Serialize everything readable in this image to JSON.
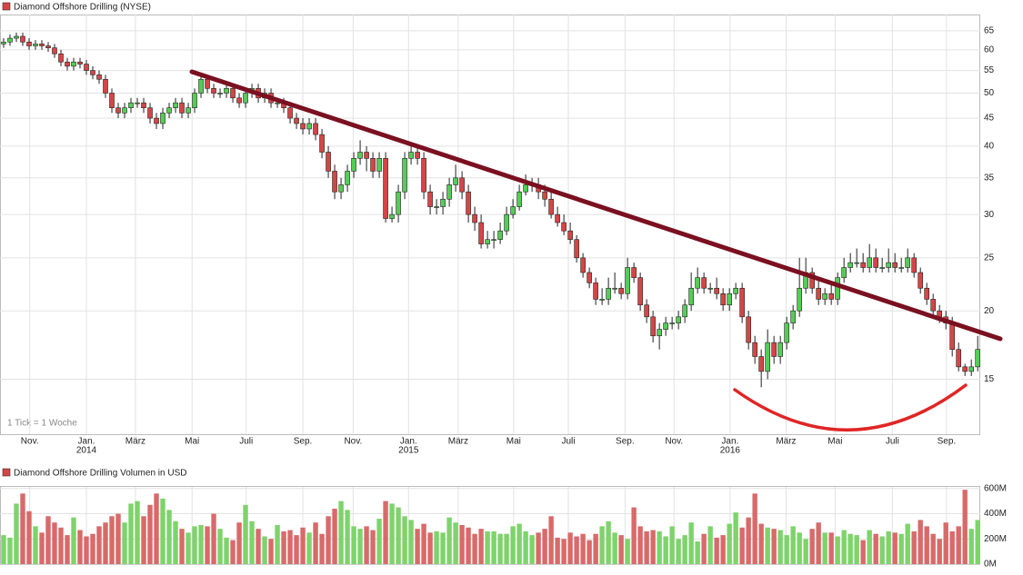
{
  "chart_data": [
    {
      "type": "candlestick",
      "title": "Diamond Offshore Drilling (NYSE)",
      "note": "1 Tick = 1 Woche",
      "log_scale": true,
      "grid": true,
      "up_color": "#55cc55",
      "down_color": "#d64545",
      "xlim": [
        -0.57,
        153.4
      ],
      "ylim": [
        11.9,
        69.6
      ],
      "yticks": [
        15,
        20,
        25,
        30,
        35,
        40,
        45,
        50,
        55,
        60,
        65
      ],
      "xticks": [
        {
          "value": 4.1,
          "label": "Nov."
        },
        {
          "value": 13,
          "label": "Jan."
        },
        {
          "value": 20.7,
          "label": "März"
        },
        {
          "value": 29.6,
          "label": "Mai"
        },
        {
          "value": 38.1,
          "label": "Juli"
        },
        {
          "value": 47,
          "label": "Sep."
        },
        {
          "value": 54.9,
          "label": "Nov."
        },
        {
          "value": 63.6,
          "label": "Jan."
        },
        {
          "value": 71.4,
          "label": "März"
        },
        {
          "value": 80.1,
          "label": "Mai"
        },
        {
          "value": 88.7,
          "label": "Juli"
        },
        {
          "value": 97.6,
          "label": "Sep."
        },
        {
          "value": 105.3,
          "label": "Nov."
        },
        {
          "value": 114.1,
          "label": "Jan."
        },
        {
          "value": 122.9,
          "label": "März"
        },
        {
          "value": 130.6,
          "label": "Mai"
        },
        {
          "value": 139.6,
          "label": "Juli"
        },
        {
          "value": 148.1,
          "label": "Sep."
        }
      ],
      "year_labels": [
        {
          "value": 13,
          "label": "2014"
        },
        {
          "value": 63.6,
          "label": "2015"
        },
        {
          "value": 114.1,
          "label": "2016"
        }
      ],
      "series": [
        {
          "name": "Diamond Offshore Drilling",
          "open": [
            61.5,
            62,
            63,
            63.5,
            62,
            61,
            61.5,
            61,
            60.5,
            59,
            57,
            56,
            57,
            56.5,
            55,
            54,
            53,
            50,
            47,
            46,
            47,
            48,
            48,
            47,
            45,
            44,
            46,
            47,
            48,
            46,
            47,
            50,
            53,
            51,
            50,
            50,
            51,
            49,
            48,
            50,
            51,
            49,
            50,
            48,
            48,
            47,
            45,
            44,
            43,
            44,
            42,
            39,
            36,
            33,
            34,
            36,
            38,
            39,
            38,
            36,
            38,
            29.5,
            30,
            33,
            38,
            39,
            38,
            33,
            31,
            31,
            32,
            34,
            35,
            33,
            30,
            29,
            26.5,
            27,
            27,
            28,
            30,
            31,
            33,
            34,
            34,
            33,
            32,
            30,
            29,
            28,
            27,
            25,
            23.5,
            22.5,
            21,
            21,
            22,
            22,
            21.5,
            24,
            23,
            20.5,
            19.5,
            18,
            18.5,
            19,
            19,
            19.5,
            20.5,
            22,
            23,
            22,
            22,
            21.5,
            20.5,
            21.5,
            22,
            19.5,
            17.5,
            16.5,
            15.5,
            17.5,
            16.5,
            17.5,
            19,
            20,
            22,
            23.5,
            22,
            21,
            21.5,
            21,
            23,
            24,
            24.5,
            24.5,
            24,
            25,
            24,
            24,
            24.5,
            24,
            24,
            25,
            23.5,
            22,
            21,
            20,
            19.5,
            19,
            17,
            15.8,
            15.5,
            15.8
          ],
          "high": [
            63,
            64,
            64.5,
            64.5,
            63,
            62.5,
            62.5,
            62,
            61.5,
            60,
            58,
            58,
            58,
            57.5,
            56,
            55,
            54,
            51,
            48,
            48,
            49,
            49,
            49,
            48,
            46,
            47,
            48,
            49,
            49,
            48,
            51,
            54,
            54,
            52,
            51,
            52,
            52,
            50,
            51,
            52,
            52,
            51,
            51,
            49,
            49,
            48,
            46,
            45,
            45,
            45,
            43,
            40,
            37,
            35,
            37,
            39,
            41,
            40,
            39,
            39,
            39,
            31,
            34,
            39,
            40,
            40,
            39,
            34,
            32,
            33,
            35,
            37,
            36,
            34,
            31,
            30,
            28,
            28,
            29,
            31,
            32,
            34,
            35.5,
            35,
            35,
            34,
            33,
            31,
            30,
            29,
            27.5,
            25.5,
            24,
            23,
            22,
            23,
            23.5,
            22.5,
            25,
            24.5,
            23.5,
            21,
            20,
            19,
            19.5,
            19.5,
            20,
            21,
            23.5,
            24,
            23.5,
            22.5,
            23,
            22,
            22,
            22.5,
            22.5,
            20,
            18,
            17,
            18.5,
            18,
            18,
            19.5,
            20.5,
            25,
            25,
            24,
            23,
            22,
            22.5,
            23.5,
            25,
            25.5,
            26,
            25.5,
            26.5,
            26,
            25,
            26,
            25.5,
            25,
            26,
            25.5,
            24,
            22.5,
            21.5,
            20.5,
            20,
            19.5,
            17.5,
            16,
            16.3,
            18
          ],
          "low": [
            60.5,
            61,
            62,
            61,
            60,
            60,
            60,
            59.5,
            58,
            56,
            55,
            55,
            55.5,
            54,
            53,
            52,
            49,
            46,
            45,
            45,
            46,
            47,
            46,
            44,
            43,
            43,
            45,
            46,
            45,
            45,
            46,
            49,
            50,
            49,
            49,
            49,
            48,
            47,
            47,
            49,
            48,
            48,
            47,
            47,
            46,
            44,
            43,
            42,
            42,
            41,
            38,
            35,
            32,
            32,
            33,
            35,
            37,
            36,
            35,
            35,
            29,
            29,
            29,
            32,
            37,
            37,
            32,
            30,
            30,
            30,
            31,
            33,
            32,
            29,
            28,
            26,
            26,
            26,
            26.5,
            27.5,
            29.5,
            30.5,
            32.5,
            33,
            32,
            31,
            29.5,
            28.5,
            27.5,
            26.5,
            24.5,
            23,
            22,
            20.5,
            20.5,
            20.5,
            21.5,
            21,
            21,
            22.5,
            20,
            19,
            17.5,
            17,
            18,
            18.5,
            18.5,
            19,
            20,
            21.5,
            21.5,
            21.5,
            21,
            20,
            20,
            21,
            19,
            17,
            16,
            14.5,
            15,
            16,
            16,
            17,
            18.5,
            19.5,
            21.5,
            21.5,
            20.5,
            20.5,
            20.5,
            20.5,
            22.5,
            23.5,
            24,
            23.5,
            23.5,
            23.5,
            23.5,
            23.5,
            23.5,
            23.5,
            23.5,
            23,
            21.5,
            20.5,
            19.5,
            19,
            18.5,
            16.5,
            15.5,
            15.2,
            15.2,
            15.5
          ],
          "close": [
            62,
            63,
            63.5,
            62,
            61,
            61.5,
            61,
            60.5,
            59,
            57,
            56,
            57,
            56.5,
            55,
            54,
            53,
            50,
            47,
            46,
            47,
            48,
            48,
            47,
            45,
            44,
            46,
            47,
            48,
            46,
            47,
            50,
            53,
            51,
            50,
            50,
            51,
            49,
            48,
            50,
            51,
            49,
            50,
            48,
            48,
            47,
            45,
            44,
            43,
            44,
            42,
            39,
            36,
            33,
            34,
            36,
            38,
            39,
            38,
            36,
            38,
            29.5,
            30,
            33,
            38,
            39,
            38,
            33,
            31,
            31,
            32,
            34,
            35,
            33,
            30,
            29,
            26.5,
            27,
            27,
            28,
            30,
            31,
            33,
            34,
            34,
            33,
            32,
            30,
            29,
            28,
            27,
            25,
            23.5,
            22.5,
            21,
            21,
            22,
            22,
            21.5,
            24,
            23,
            20.5,
            19.5,
            18,
            18.5,
            19,
            19,
            19.5,
            20.5,
            22,
            23,
            22,
            22,
            21.5,
            20.5,
            21.5,
            22,
            19.5,
            17.5,
            16.5,
            15.5,
            17.5,
            16.5,
            17.5,
            19,
            20,
            22,
            23.5,
            22,
            21,
            21.5,
            21,
            23,
            24,
            24.5,
            24.5,
            24,
            25,
            24,
            24,
            24.5,
            24,
            24,
            25,
            23.5,
            22,
            21,
            20,
            19.5,
            19,
            17,
            15.8,
            15.5,
            15.8,
            17
          ]
        }
      ]
    },
    {
      "type": "bar",
      "title": "Diamond Offshore Drilling Volumen in USD",
      "up_color": "#7ed36b",
      "down_color": "#d86a6a",
      "grid": true,
      "ylim": [
        0,
        620
      ],
      "yticks": [
        {
          "value": 0,
          "label": "0M"
        },
        {
          "value": 200,
          "label": "200M"
        },
        {
          "value": 400,
          "label": "400M"
        },
        {
          "value": 600,
          "label": "600M"
        }
      ],
      "values": [
        230,
        210,
        480,
        560,
        420,
        300,
        250,
        380,
        330,
        290,
        230,
        370,
        270,
        220,
        240,
        300,
        330,
        380,
        400,
        330,
        480,
        500,
        380,
        470,
        560,
        520,
        430,
        340,
        280,
        250,
        300,
        310,
        300,
        400,
        280,
        210,
        190,
        330,
        470,
        340,
        280,
        220,
        200,
        310,
        260,
        270,
        230,
        290,
        250,
        330,
        240,
        380,
        440,
        500,
        430,
        300,
        280,
        300,
        270,
        360,
        500,
        480,
        450,
        380,
        350,
        280,
        320,
        250,
        260,
        250,
        370,
        330,
        310,
        290,
        240,
        280,
        260,
        260,
        240,
        240,
        300,
        320,
        260,
        230,
        250,
        280,
        380,
        210,
        200,
        250,
        220,
        240,
        190,
        240,
        300,
        340,
        250,
        230,
        200,
        450,
        300,
        260,
        270,
        260,
        220,
        300,
        200,
        230,
        330,
        180,
        240,
        300,
        210,
        230,
        320,
        410,
        290,
        370,
        560,
        320,
        290,
        280,
        270,
        230,
        300,
        250,
        200,
        280,
        330,
        250,
        250,
        220,
        270,
        240,
        230,
        190,
        270,
        240,
        220,
        260,
        250,
        240,
        320,
        260,
        350,
        300,
        240,
        200,
        330,
        260,
        300,
        590,
        280,
        350
      ]
    }
  ]
}
